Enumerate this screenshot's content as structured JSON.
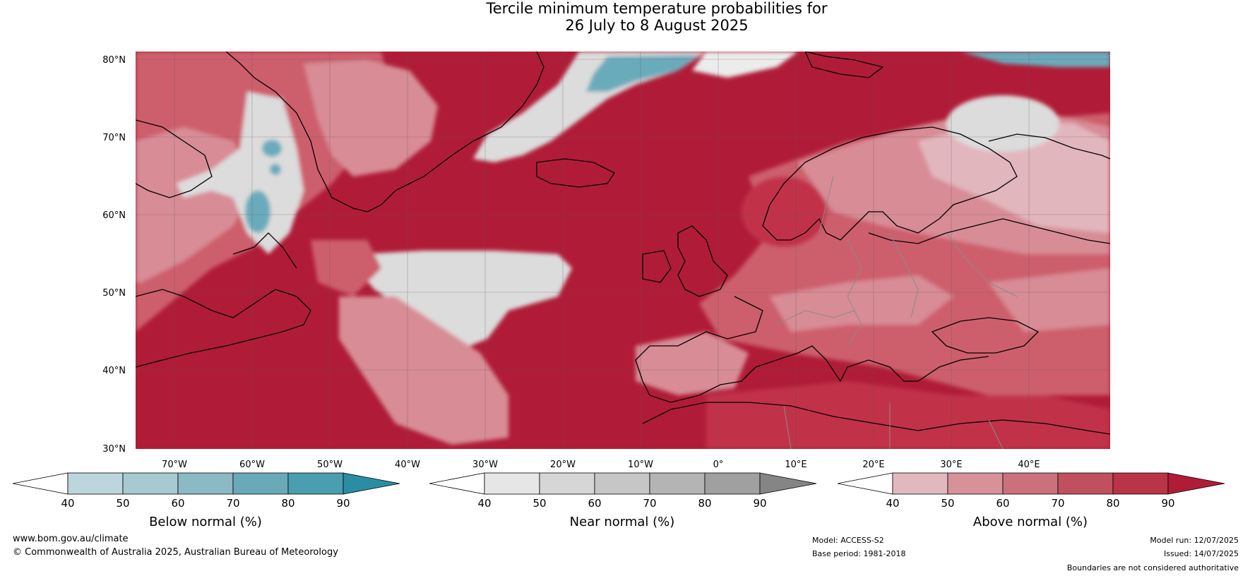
{
  "title": {
    "line1": "Tercile minimum temperature probabilities for",
    "line2": "26 July to 8 August 2025"
  },
  "map": {
    "lat_labels": [
      "80°N",
      "70°N",
      "60°N",
      "50°N",
      "40°N",
      "30°N"
    ],
    "lon_labels": [
      "70°W",
      "60°W",
      "50°W",
      "40°W",
      "30°W",
      "20°W",
      "10°W",
      "0°",
      "10°E",
      "20°E",
      "30°E",
      "40°E"
    ],
    "colors": {
      "ocean_dark_red": "#b01c37",
      "above_80": "#c13349",
      "above_70": "#cd5f6c",
      "above_60": "#d88c96",
      "above_50": "#e2b6bd",
      "near_grey": "#dcdcdc",
      "near_light": "#ececec",
      "below_teal": "#6aabbb",
      "below_dark": "#3f97ab",
      "coast": "#000000",
      "border": "#8a8a8a"
    }
  },
  "colorbars": [
    {
      "id": "below",
      "title": "Below normal (%)",
      "ticks": [
        "40",
        "50",
        "60",
        "70",
        "80",
        "90"
      ],
      "colors": [
        "#ffffff",
        "#bdd5dc",
        "#a7c9d1",
        "#8bb9c4",
        "#6aaab8",
        "#4a9eb0",
        "#2b8da3"
      ]
    },
    {
      "id": "near",
      "title": "Near normal (%)",
      "ticks": [
        "40",
        "50",
        "60",
        "70",
        "80",
        "90"
      ],
      "colors": [
        "#ffffff",
        "#e6e6e6",
        "#d6d6d6",
        "#c6c6c6",
        "#b4b4b4",
        "#a0a0a0",
        "#858585"
      ]
    },
    {
      "id": "above",
      "title": "Above normal (%)",
      "ticks": [
        "40",
        "50",
        "60",
        "70",
        "80",
        "90"
      ],
      "colors": [
        "#ffffff",
        "#e2b8bf",
        "#d69199",
        "#cb717b",
        "#c1505e",
        "#b93446",
        "#b01c37"
      ]
    }
  ],
  "footer": {
    "website": "www.bom.gov.au/climate",
    "copyright": "© Commonwealth of Australia 2025, Australian Bureau of Meteorology",
    "model": "Model: ACCESS-S2",
    "base_period": "Base period: 1981-2018",
    "model_run": "Model run: 12/07/2025",
    "issued": "Issued: 14/07/2025",
    "disclaimer": "Boundaries are not considered authoritative"
  }
}
